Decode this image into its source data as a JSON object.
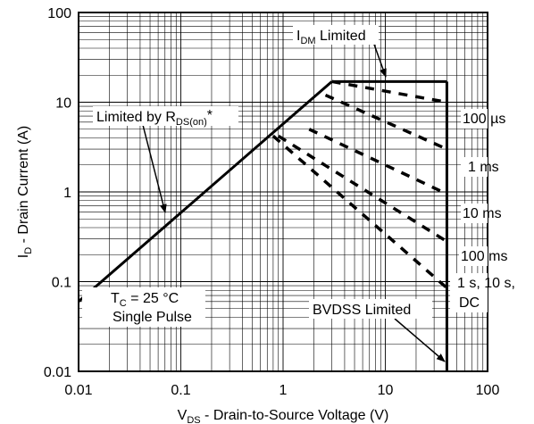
{
  "chart_data": {
    "type": "line",
    "scale": {
      "x": "log",
      "y": "log"
    },
    "xlim": [
      0.01,
      100
    ],
    "ylim": [
      0.01,
      100
    ],
    "xlabel": {
      "main": "V",
      "sub": "DS",
      "rest": " - Drain-to-Source Voltage (V)"
    },
    "ylabel": {
      "main": "I",
      "sub": "D",
      "rest": " - Drain Current (A)"
    },
    "x_ticks": [
      {
        "value": 0.01,
        "label": "0.01"
      },
      {
        "value": 0.1,
        "label": "0.1"
      },
      {
        "value": 1,
        "label": "1"
      },
      {
        "value": 10,
        "label": "10"
      },
      {
        "value": 100,
        "label": "100"
      }
    ],
    "y_ticks": [
      {
        "value": 0.01,
        "label": "0.01"
      },
      {
        "value": 0.1,
        "label": "0.1"
      },
      {
        "value": 1,
        "label": "1"
      },
      {
        "value": 10,
        "label": "10"
      },
      {
        "value": 100,
        "label": "100"
      }
    ],
    "grid": "major and minor (log decades)",
    "boundary": {
      "rds_limit": [
        [
          0.01,
          0.06
        ],
        [
          3.0,
          17
        ]
      ],
      "idm_limit": [
        [
          3.0,
          17
        ],
        [
          40,
          17
        ]
      ],
      "bvdss_limit": [
        [
          40,
          17
        ],
        [
          40,
          0.01
        ]
      ]
    },
    "dashed_series": [
      {
        "label": "100 µs",
        "points": [
          [
            3.0,
            17
          ],
          [
            40,
            10
          ]
        ]
      },
      {
        "label": "1 ms",
        "points": [
          [
            2.6,
            12
          ],
          [
            40,
            3.0
          ]
        ]
      },
      {
        "label": "10 ms",
        "points": [
          [
            1.8,
            5.0
          ],
          [
            40,
            0.95
          ]
        ]
      },
      {
        "label": "100 ms",
        "points": [
          [
            0.9,
            4.2
          ],
          [
            40,
            0.28
          ]
        ]
      },
      {
        "label": "1 s, 10 s, DC",
        "points": [
          [
            0.8,
            4.2
          ],
          [
            40,
            0.085
          ]
        ]
      }
    ],
    "annotations": {
      "idm": {
        "main": "I",
        "sub": "DM",
        "rest": " Limited"
      },
      "rds": {
        "main": "Limited by R",
        "sub": "DS(on)",
        "rest": "*"
      },
      "tc": {
        "main": "T",
        "sub": "C",
        "rest": " = 25 °C"
      },
      "single_pulse": "Single Pulse",
      "bvdss": "BVDSS Limited",
      "l100us": "100 µs",
      "l1ms": "1 ms",
      "l10ms": "10 ms",
      "l100ms": "100 ms",
      "l1s": "1 s, 10 s,",
      "ldc": "DC"
    }
  }
}
